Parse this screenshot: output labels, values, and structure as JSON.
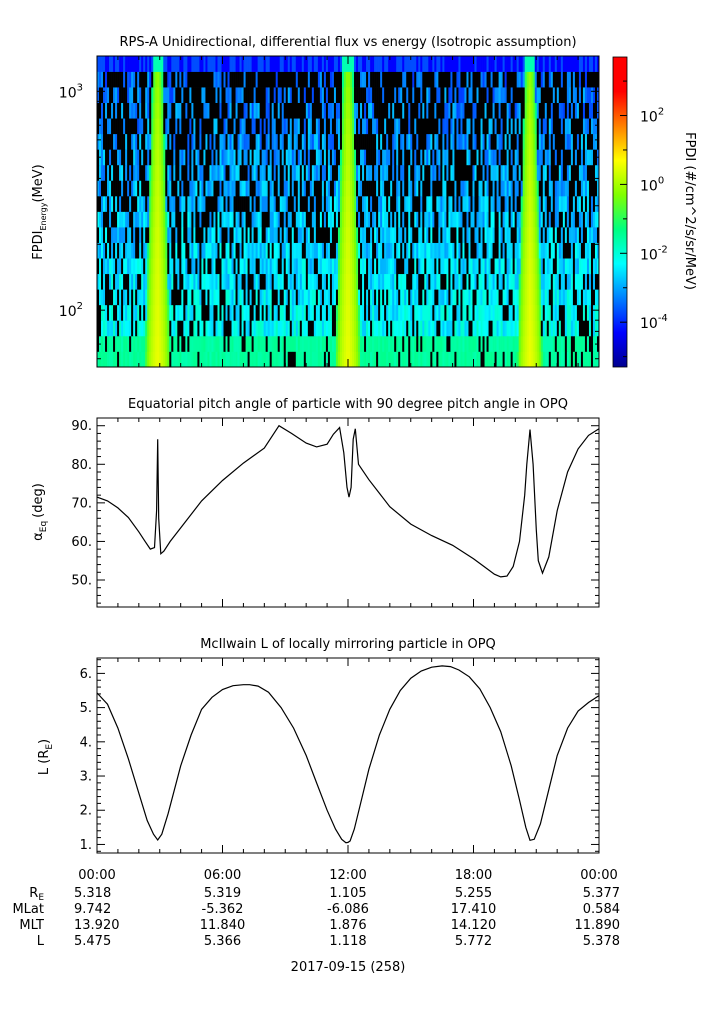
{
  "colorbar": {
    "label": "FPDI (#/cm^2/s/sr/MeV)",
    "ticks": [
      {
        "base": "10",
        "exp": "2",
        "value": 100
      },
      {
        "base": "10",
        "exp": "0",
        "value": 1
      },
      {
        "base": "10",
        "exp": "-2",
        "value": 0.01
      },
      {
        "base": "10",
        "exp": "-4",
        "value": 0.0001
      }
    ],
    "range": [
      5e-06,
      5000
    ],
    "colors": [
      "#00008f",
      "#0000ff",
      "#0080ff",
      "#00ffff",
      "#00ff80",
      "#80ff00",
      "#ffff00",
      "#ff8000",
      "#ff0000",
      "#ff0000"
    ]
  },
  "chart_data": [
    {
      "type": "heatmap",
      "title": "RPS-A Unidirectional, differential flux vs energy (Isotropic assumption)",
      "ylabel_main": "FPDI",
      "ylabel_sub": "Energy",
      "ylabel_unit": "(MeV)",
      "yscale": "log",
      "ylim": [
        55,
        1450
      ],
      "xlim_hours": [
        0,
        24
      ],
      "yticks": [
        {
          "base": "10",
          "exp": "3",
          "value": 1000
        },
        {
          "base": "10",
          "exp": "2",
          "value": 100
        }
      ],
      "perigee_hours": [
        2.9,
        12.0,
        20.7
      ],
      "peak_flux": 3.0,
      "background_flux": 0.02
    },
    {
      "type": "line",
      "title": "Equatorial pitch angle of particle with 90 degree pitch angle in OPQ",
      "ylabel_main": "α",
      "ylabel_sub": "Eq",
      "ylabel_unit": "(deg)",
      "ylim": [
        43,
        92
      ],
      "xlim_hours": [
        0,
        24
      ],
      "yticks": [
        {
          "label": "90.",
          "value": 90
        },
        {
          "label": "80.",
          "value": 80
        },
        {
          "label": "70.",
          "value": 70
        },
        {
          "label": "60.",
          "value": 60
        },
        {
          "label": "50.",
          "value": 50
        }
      ],
      "x": [
        0,
        0.5,
        1.0,
        1.5,
        2.0,
        2.3,
        2.55,
        2.75,
        2.85,
        2.9,
        2.95,
        3.05,
        3.2,
        3.5,
        4,
        5,
        6,
        7,
        8,
        8.7,
        9.3,
        10,
        10.5,
        11,
        11.3,
        11.6,
        11.8,
        11.95,
        12.05,
        12.15,
        12.25,
        12.35,
        12.5,
        13,
        14,
        15,
        16,
        17,
        18,
        18.5,
        19,
        19.3,
        19.6,
        19.9,
        20.2,
        20.45,
        20.55,
        20.7,
        20.85,
        21.0,
        21.1,
        21.3,
        21.6,
        22,
        22.5,
        23,
        23.5,
        24
      ],
      "y": [
        71.5,
        70.5,
        68.7,
        66.2,
        62.5,
        60,
        58,
        58.4,
        68,
        86.5,
        66,
        56.8,
        57.5,
        60,
        63.5,
        70.5,
        75.8,
        80.3,
        84.2,
        90,
        88,
        85.5,
        84.5,
        85.2,
        87.8,
        89.5,
        83,
        74,
        71.5,
        74,
        86.5,
        89.2,
        80,
        76,
        69,
        64.5,
        61.5,
        59,
        55.5,
        53.5,
        51.5,
        50.8,
        51,
        53.5,
        60,
        72,
        80,
        89,
        80,
        63,
        55,
        51.8,
        56,
        68,
        78,
        84,
        87.5,
        89.2
      ]
    },
    {
      "type": "line",
      "title": "McIlwain L of locally mirroring particle in OPQ",
      "ylabel_main": "L (R",
      "ylabel_sub": "E",
      "ylabel_unit": ")",
      "ylim": [
        0.75,
        6.45
      ],
      "xlim_hours": [
        0,
        24
      ],
      "yticks": [
        {
          "label": "6.",
          "value": 6
        },
        {
          "label": "5.",
          "value": 5
        },
        {
          "label": "4.",
          "value": 4
        },
        {
          "label": "3.",
          "value": 3
        },
        {
          "label": "2.",
          "value": 2
        },
        {
          "label": "1.",
          "value": 1
        }
      ],
      "x": [
        0,
        0.5,
        1,
        1.5,
        2,
        2.4,
        2.7,
        2.9,
        3.1,
        3.4,
        4,
        4.5,
        5,
        5.5,
        6,
        6.5,
        7,
        7.3,
        7.7,
        8.2,
        8.8,
        9.4,
        10,
        10.5,
        11,
        11.4,
        11.7,
        11.9,
        12.0,
        12.1,
        12.3,
        12.6,
        13,
        13.5,
        14,
        14.5,
        15,
        15.5,
        16,
        16.5,
        16.9,
        17.3,
        17.8,
        18.3,
        18.8,
        19.3,
        19.8,
        20.2,
        20.5,
        20.7,
        20.9,
        21.2,
        21.6,
        22,
        22.5,
        23,
        23.5,
        24
      ],
      "y": [
        5.43,
        5.1,
        4.4,
        3.5,
        2.5,
        1.7,
        1.3,
        1.13,
        1.3,
        1.9,
        3.3,
        4.2,
        4.95,
        5.3,
        5.53,
        5.64,
        5.67,
        5.67,
        5.63,
        5.45,
        5.0,
        4.4,
        3.6,
        2.8,
        2.0,
        1.45,
        1.15,
        1.05,
        1.06,
        1.1,
        1.45,
        2.2,
        3.2,
        4.2,
        4.95,
        5.5,
        5.86,
        6.07,
        6.18,
        6.22,
        6.2,
        6.1,
        5.9,
        5.55,
        5.0,
        4.3,
        3.3,
        2.3,
        1.5,
        1.12,
        1.15,
        1.6,
        2.6,
        3.6,
        4.4,
        4.9,
        5.15,
        5.35
      ]
    }
  ],
  "time_axis": {
    "tick_labels": [
      "00:00",
      "06:00",
      "12:00",
      "18:00",
      "00:00"
    ],
    "tick_hours": [
      0,
      6,
      12,
      18,
      24
    ],
    "date_label": "2017-09-15 (258)"
  },
  "ephemeris": {
    "rows": [
      {
        "name": "R",
        "sub": "E",
        "values": [
          "5.318",
          "5.319",
          "1.105",
          "5.255",
          "5.377"
        ]
      },
      {
        "name": "MLat",
        "sub": "",
        "values": [
          "9.742",
          "-5.362",
          "-6.086",
          "17.410",
          "0.584"
        ]
      },
      {
        "name": "MLT",
        "sub": "",
        "values": [
          "13.920",
          "11.840",
          "1.876",
          "14.120",
          "11.890"
        ]
      },
      {
        "name": "L",
        "sub": "",
        "values": [
          "5.475",
          "5.366",
          "1.118",
          "5.772",
          "5.378"
        ]
      }
    ]
  }
}
